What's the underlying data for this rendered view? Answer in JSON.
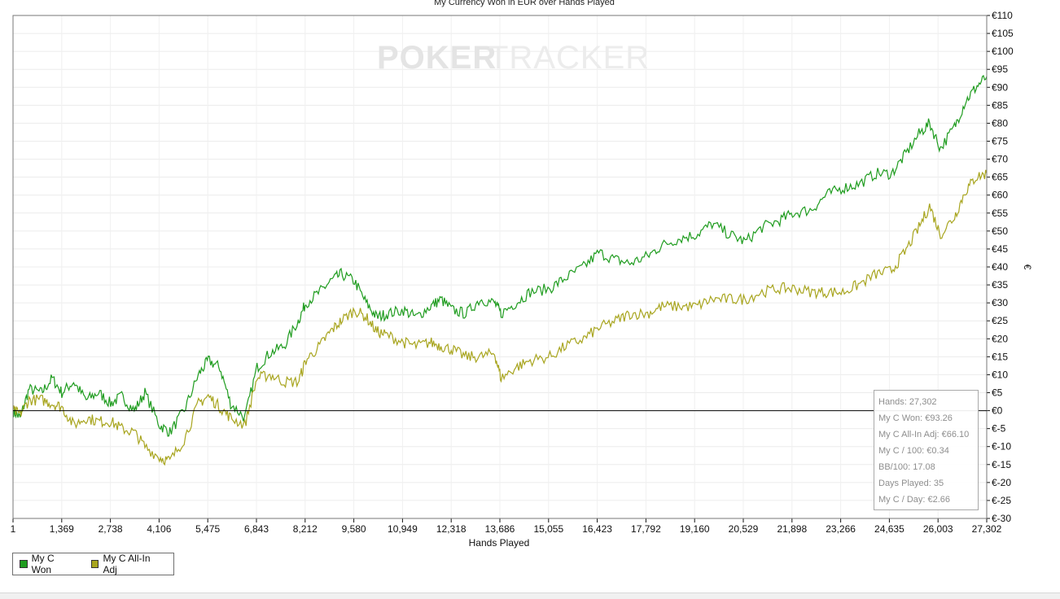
{
  "chart_data": {
    "type": "line",
    "title": "My Currency Won in EUR over Hands Played",
    "xlabel": "Hands Played",
    "ylabel": "€",
    "x_ticks": [
      "1",
      "1,369",
      "2,738",
      "4,106",
      "5,475",
      "6,843",
      "8,212",
      "9,580",
      "10,949",
      "12,318",
      "13,686",
      "15,055",
      "16,423",
      "17,792",
      "19,160",
      "20,529",
      "21,898",
      "23,266",
      "24,635",
      "26,003",
      "27,302"
    ],
    "xlim": [
      1,
      27302
    ],
    "ylim": [
      -30,
      110
    ],
    "y_ticks": [
      "€110",
      "€105",
      "€100",
      "€95",
      "€90",
      "€85",
      "€80",
      "€75",
      "€70",
      "€65",
      "€60",
      "€55",
      "€50",
      "€45",
      "€40",
      "€35",
      "€30",
      "€25",
      "€20",
      "€15",
      "€10",
      "€5",
      "€0",
      "€-5",
      "€-10",
      "€-15",
      "€-20",
      "€-25",
      "€-30"
    ],
    "grid": true,
    "legend_position": "bottom-left",
    "series": [
      {
        "name": "My C Won",
        "color": "#1f9c1f",
        "points": [
          [
            1,
            0
          ],
          [
            200,
            -2
          ],
          [
            450,
            6
          ],
          [
            800,
            5
          ],
          [
            1100,
            9
          ],
          [
            1369,
            5
          ],
          [
            1700,
            8
          ],
          [
            2050,
            3
          ],
          [
            2400,
            5
          ],
          [
            2738,
            2
          ],
          [
            3050,
            4
          ],
          [
            3400,
            0
          ],
          [
            3700,
            5
          ],
          [
            4106,
            -4
          ],
          [
            4400,
            -6
          ],
          [
            4800,
            0
          ],
          [
            5200,
            10
          ],
          [
            5475,
            14
          ],
          [
            5800,
            12
          ],
          [
            6100,
            2
          ],
          [
            6500,
            -2
          ],
          [
            6843,
            12
          ],
          [
            7200,
            16
          ],
          [
            7600,
            18
          ],
          [
            8000,
            25
          ],
          [
            8212,
            30
          ],
          [
            8600,
            33
          ],
          [
            8900,
            36
          ],
          [
            9200,
            38
          ],
          [
            9580,
            36
          ],
          [
            9900,
            30
          ],
          [
            10200,
            26
          ],
          [
            10500,
            27
          ],
          [
            10949,
            28
          ],
          [
            11300,
            26
          ],
          [
            11700,
            29
          ],
          [
            12000,
            31
          ],
          [
            12318,
            28
          ],
          [
            12700,
            27
          ],
          [
            13100,
            31
          ],
          [
            13500,
            30
          ],
          [
            13686,
            27
          ],
          [
            14100,
            30
          ],
          [
            14500,
            33
          ],
          [
            15055,
            34
          ],
          [
            15500,
            37
          ],
          [
            16000,
            40
          ],
          [
            16423,
            44
          ],
          [
            16900,
            42
          ],
          [
            17300,
            41
          ],
          [
            17792,
            43
          ],
          [
            18200,
            46
          ],
          [
            18700,
            48
          ],
          [
            19160,
            49
          ],
          [
            19600,
            52
          ],
          [
            20100,
            49
          ],
          [
            20529,
            47
          ],
          [
            21000,
            51
          ],
          [
            21500,
            53
          ],
          [
            21898,
            55
          ],
          [
            22400,
            56
          ],
          [
            22800,
            60
          ],
          [
            23266,
            62
          ],
          [
            23700,
            63
          ],
          [
            24200,
            66
          ],
          [
            24635,
            66
          ],
          [
            25000,
            71
          ],
          [
            25400,
            77
          ],
          [
            25700,
            80
          ],
          [
            26003,
            73
          ],
          [
            26400,
            79
          ],
          [
            26700,
            86
          ],
          [
            27000,
            90
          ],
          [
            27302,
            93
          ]
        ]
      },
      {
        "name": "My C All-In Adj",
        "color": "#a8a51f",
        "points": [
          [
            1,
            0
          ],
          [
            200,
            -1
          ],
          [
            450,
            3
          ],
          [
            800,
            3
          ],
          [
            1100,
            2
          ],
          [
            1369,
            1
          ],
          [
            1700,
            -4
          ],
          [
            2050,
            -2
          ],
          [
            2400,
            -3
          ],
          [
            2738,
            -3
          ],
          [
            3050,
            -5
          ],
          [
            3400,
            -6
          ],
          [
            3700,
            -10
          ],
          [
            4106,
            -13
          ],
          [
            4400,
            -14
          ],
          [
            4800,
            -8
          ],
          [
            5200,
            2
          ],
          [
            5475,
            4
          ],
          [
            5800,
            1
          ],
          [
            6100,
            -2
          ],
          [
            6500,
            -4
          ],
          [
            6843,
            9
          ],
          [
            7200,
            10
          ],
          [
            7600,
            8
          ],
          [
            8000,
            8
          ],
          [
            8212,
            14
          ],
          [
            8600,
            18
          ],
          [
            8900,
            22
          ],
          [
            9200,
            25
          ],
          [
            9580,
            28
          ],
          [
            9900,
            26
          ],
          [
            10200,
            22
          ],
          [
            10500,
            21
          ],
          [
            10949,
            19
          ],
          [
            11300,
            18
          ],
          [
            11700,
            19
          ],
          [
            12000,
            18
          ],
          [
            12318,
            17
          ],
          [
            12700,
            15
          ],
          [
            13100,
            15
          ],
          [
            13500,
            16
          ],
          [
            13686,
            9
          ],
          [
            14100,
            12
          ],
          [
            14500,
            14
          ],
          [
            15055,
            15
          ],
          [
            15500,
            18
          ],
          [
            16000,
            20
          ],
          [
            16423,
            23
          ],
          [
            16900,
            25
          ],
          [
            17300,
            27
          ],
          [
            17792,
            27
          ],
          [
            18200,
            29
          ],
          [
            18700,
            29
          ],
          [
            19160,
            29
          ],
          [
            19600,
            31
          ],
          [
            20100,
            31
          ],
          [
            20529,
            31
          ],
          [
            21000,
            33
          ],
          [
            21500,
            34
          ],
          [
            21898,
            34
          ],
          [
            22400,
            33
          ],
          [
            22800,
            33
          ],
          [
            23266,
            33
          ],
          [
            23700,
            35
          ],
          [
            24200,
            38
          ],
          [
            24635,
            39
          ],
          [
            25000,
            44
          ],
          [
            25400,
            51
          ],
          [
            25700,
            57
          ],
          [
            26003,
            49
          ],
          [
            26400,
            54
          ],
          [
            26700,
            61
          ],
          [
            27000,
            65
          ],
          [
            27302,
            66
          ]
        ]
      }
    ]
  },
  "watermark": {
    "part1": "POKER",
    "part2": "TRACKER"
  },
  "stats": {
    "hands": "Hands: 27,302",
    "won": "My C Won: €93.26",
    "allin": "My C All-In Adj: €66.10",
    "per100": "My C / 100: €0.34",
    "bb100": "BB/100: 17.08",
    "days": "Days Played: 35",
    "perday": "My C / Day: €2.66"
  },
  "legend": {
    "items": [
      {
        "label": "My C Won",
        "color": "#1f9c1f"
      },
      {
        "label": "My C All-In Adj",
        "color": "#a8a51f"
      }
    ]
  }
}
